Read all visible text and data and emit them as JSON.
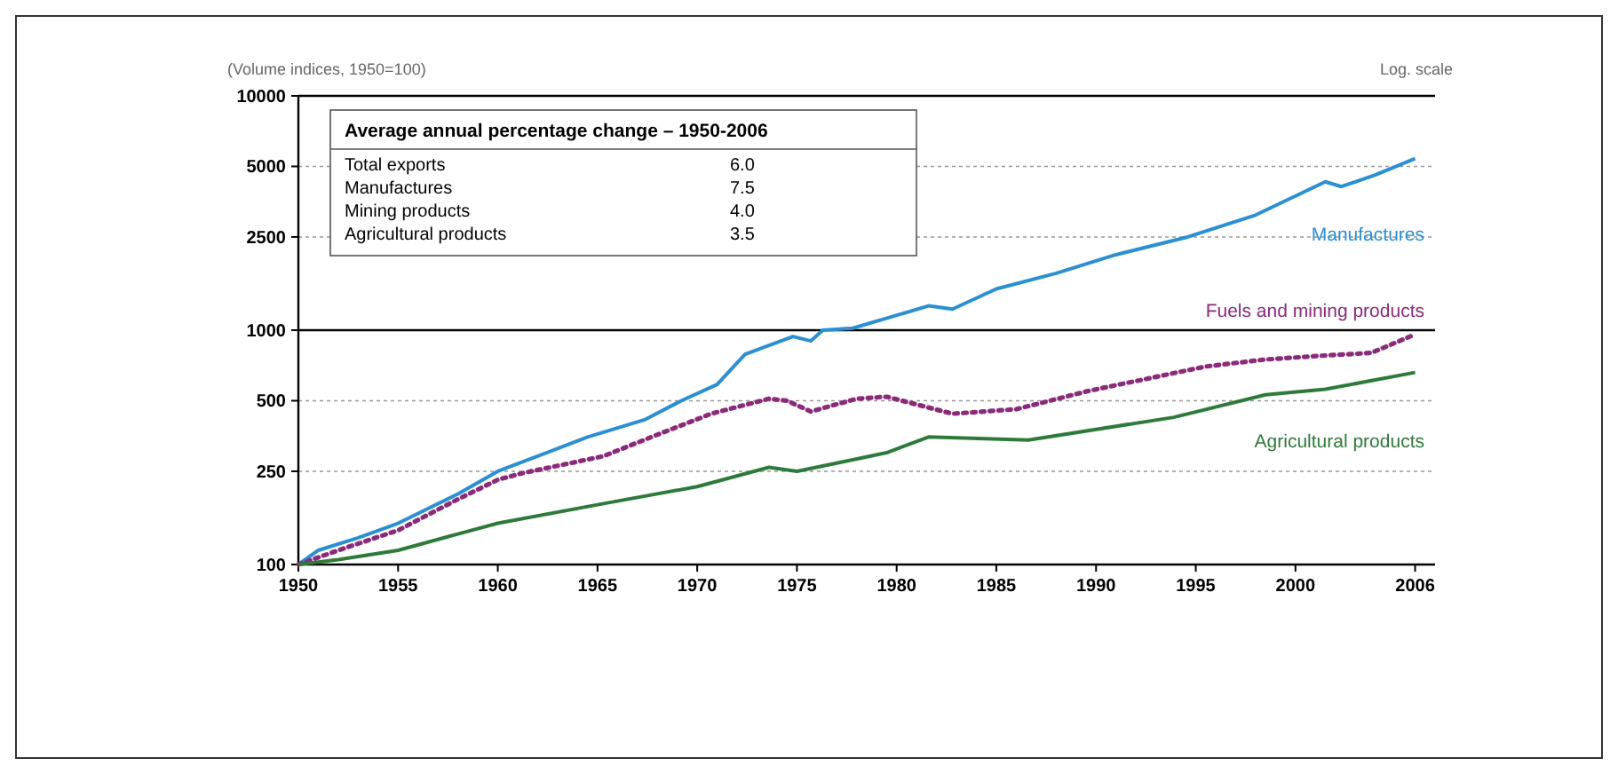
{
  "chart_data": {
    "type": "line",
    "log": "y",
    "grid": "y",
    "legend": false,
    "annotations": [
      "(Volume indices, 1950=100)",
      "Log. scale",
      "Average annual percentage change – 1950-2006",
      "Total exports",
      "6.0",
      "Manufactures",
      "7.5",
      "Mining products",
      "4.0",
      "Agricultural products",
      "3.5"
    ],
    "xlim": [
      1950,
      2007
    ],
    "xticks": [
      1950,
      1955,
      1960,
      1965,
      1970,
      1975,
      1980,
      1985,
      1990,
      1995,
      2000,
      2006
    ],
    "ylim": [
      100,
      10000
    ],
    "yticks": [
      100,
      250,
      500,
      1000,
      2500,
      5000,
      10000
    ],
    "ref_lines": [
      {
        "axis": "y",
        "value": 1000,
        "color": "#000000"
      }
    ],
    "series": [
      {
        "name": "Manufactures",
        "color": "#2b8fd2",
        "line_style": "solid",
        "x": [
          1950,
          1951,
          1953,
          1955,
          1958,
          1960,
          1962,
          1964.5,
          1967.4,
          1969.2,
          1971,
          1972.4,
          1974.8,
          1975.7,
          1976.3,
          1977.8,
          1981.6,
          1982.8,
          1985,
          1988,
          1991,
          1994.6,
          1998,
          2001.5,
          2002.3,
          2004,
          2006
        ],
        "values": [
          100,
          115,
          130,
          150,
          200,
          250,
          290,
          350,
          416,
          500,
          587,
          790,
          940,
          900,
          1000,
          1020,
          1270,
          1230,
          1500,
          1750,
          2100,
          2500,
          3100,
          4300,
          4100,
          4600,
          5400
        ]
      },
      {
        "name": "Fuels and mining products",
        "color": "#8b2a7a",
        "line_style": "dotted",
        "x": [
          1950,
          1952,
          1955,
          1958,
          1960,
          1961.2,
          1965.3,
          1967.7,
          1970.7,
          1973.6,
          1974.5,
          1975.7,
          1978,
          1979.5,
          1982.8,
          1986,
          1989.6,
          1995.5,
          1998.5,
          2001.5,
          2003.8,
          2006
        ],
        "values": [
          100,
          115,
          140,
          190,
          230,
          245,
          290,
          350,
          440,
          510,
          500,
          450,
          510,
          520,
          440,
          460,
          550,
          700,
          750,
          780,
          800,
          960
        ]
      },
      {
        "name": "Agricultural products",
        "color": "#2e7a3a",
        "line_style": "solid",
        "x": [
          1950,
          1952,
          1955,
          1958,
          1960,
          1965,
          1970,
          1973.6,
          1975,
          1977.8,
          1979.5,
          1981.6,
          1986.6,
          1993.9,
          1998.5,
          2001.5,
          2006
        ],
        "values": [
          100,
          105,
          115,
          135,
          150,
          180,
          215,
          260,
          250,
          280,
          300,
          350,
          340,
          425,
          530,
          560,
          660
        ]
      }
    ]
  }
}
